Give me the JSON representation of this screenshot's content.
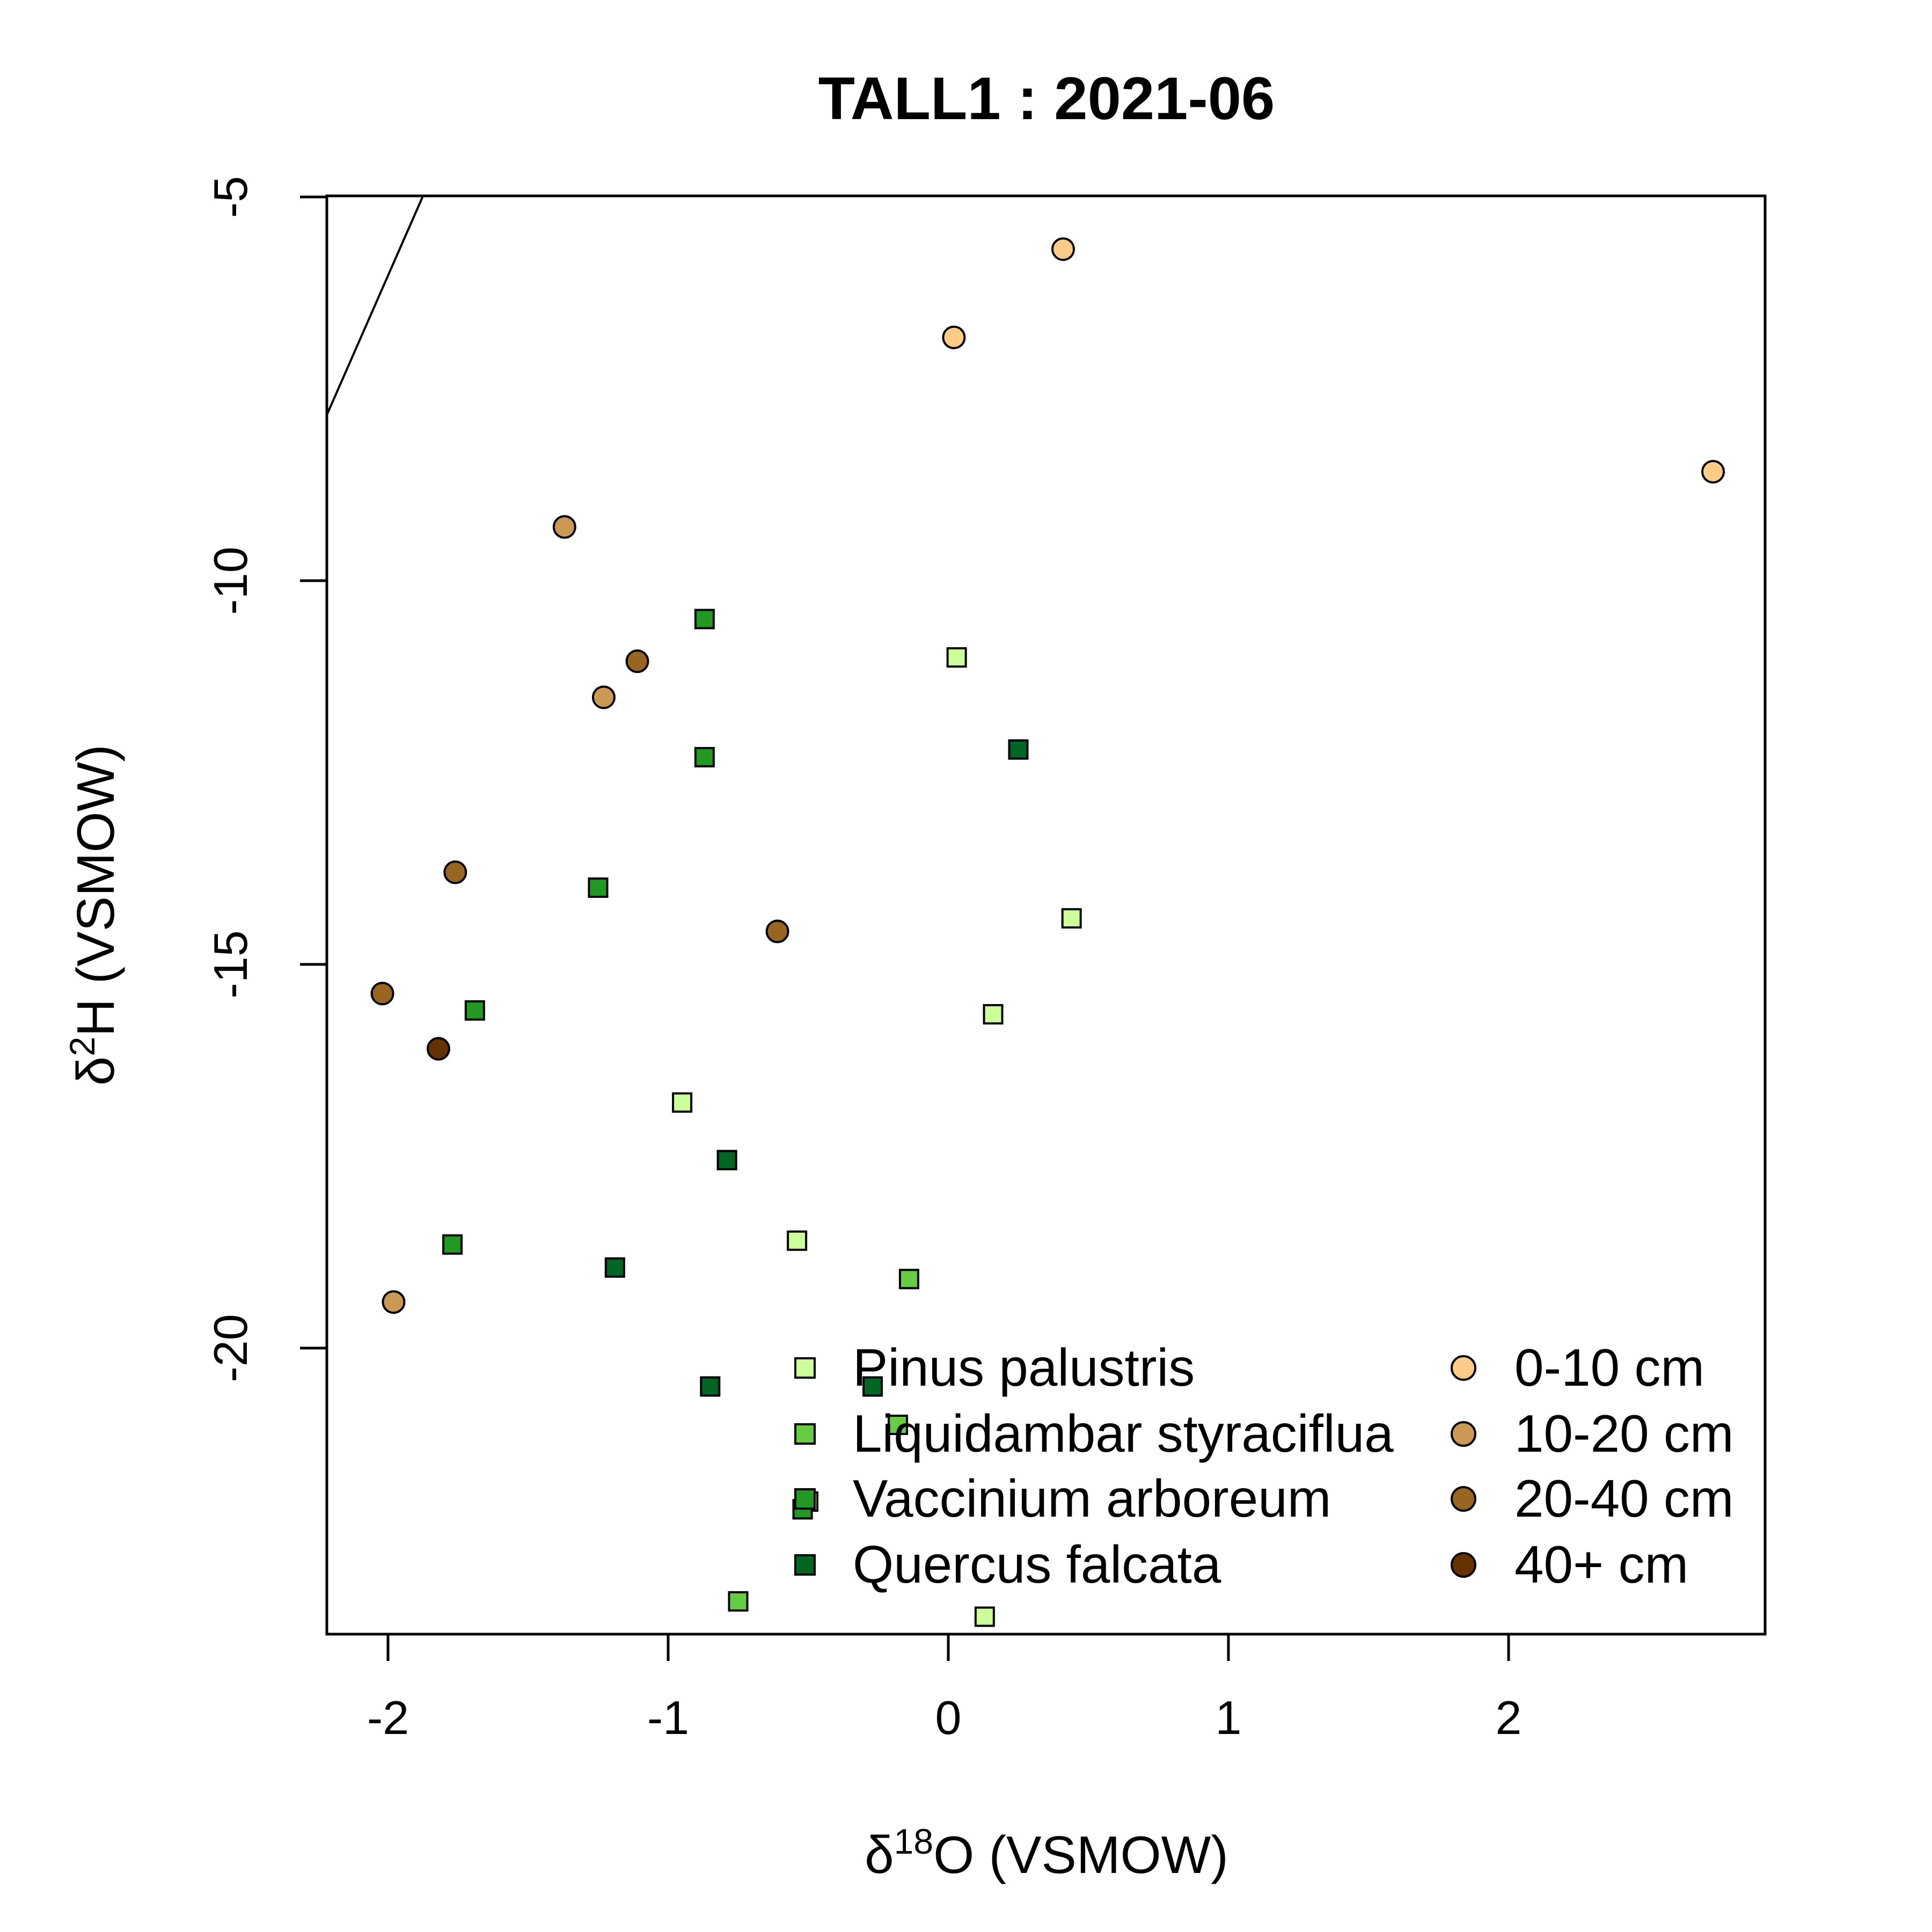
{
  "chart_data": {
    "type": "scatter",
    "title": "TALL1 : 2021-06",
    "xlabel": {
      "delta": "δ",
      "sup": "18",
      "text": "O (VSMOW)"
    },
    "ylabel": {
      "delta": "δ",
      "sup": "2",
      "text": "H (VSMOW)"
    },
    "xlim": [
      -2.23,
      2.9
    ],
    "ylim": [
      -23.7,
      -5
    ],
    "x_ticks": [
      -2,
      -1,
      0,
      1,
      2
    ],
    "x_tick_labels": [
      "-2",
      "-1",
      "0",
      "1",
      "2"
    ],
    "y_ticks": [
      -5,
      -10,
      -15,
      -20
    ],
    "y_tick_labels": [
      "-5",
      "-10",
      "-15",
      "-20"
    ],
    "grid": false,
    "legend_position": "bottom-right",
    "reference_line": {
      "slope": 8,
      "intercept": 10
    },
    "plant_series": [
      {
        "name": "Pinus palustris",
        "color": "#ccff99",
        "marker": "square",
        "points": [
          [
            0.03,
            -11.0
          ],
          [
            0.44,
            -14.4
          ],
          [
            0.16,
            -15.65
          ],
          [
            -0.95,
            -16.8
          ],
          [
            -0.54,
            -18.6
          ],
          [
            -0.5,
            -22.0
          ],
          [
            0.13,
            -23.5
          ]
        ]
      },
      {
        "name": "Liquidambar styraciflua",
        "color": "#66cc44",
        "marker": "square",
        "points": [
          [
            -0.14,
            -19.1
          ],
          [
            -0.18,
            -21.0
          ],
          [
            -0.75,
            -23.3
          ],
          [
            -0.52,
            -22.1
          ]
        ]
      },
      {
        "name": "Vaccinium arboreum",
        "color": "#229922",
        "marker": "square",
        "points": [
          [
            -0.87,
            -10.5
          ],
          [
            -0.87,
            -12.3
          ],
          [
            -1.25,
            -14.0
          ],
          [
            -1.69,
            -15.6
          ],
          [
            -1.77,
            -18.65
          ],
          [
            -0.52,
            -22.1
          ]
        ]
      },
      {
        "name": "Quercus falcata",
        "color": "#006622",
        "marker": "square",
        "points": [
          [
            0.25,
            -12.2
          ],
          [
            -0.79,
            -17.55
          ],
          [
            -1.19,
            -18.95
          ],
          [
            -0.85,
            -20.5
          ],
          [
            -0.27,
            -20.5
          ]
        ]
      }
    ],
    "soil_series": [
      {
        "name": "0-10 cm",
        "color": "#ffcc88",
        "marker": "circle",
        "points": [
          [
            0.41,
            -5.68
          ],
          [
            0.02,
            -6.83
          ],
          [
            2.73,
            -8.58
          ]
        ]
      },
      {
        "name": "10-20 cm",
        "color": "#cc9955",
        "marker": "circle",
        "points": [
          [
            -1.37,
            -9.3
          ],
          [
            -1.23,
            -11.52
          ],
          [
            -1.98,
            -19.4
          ]
        ]
      },
      {
        "name": "20-40 cm",
        "color": "#996622",
        "marker": "circle",
        "points": [
          [
            -1.11,
            -11.05
          ],
          [
            -1.76,
            -13.8
          ],
          [
            -0.61,
            -14.57
          ],
          [
            -2.02,
            -15.38
          ]
        ]
      },
      {
        "name": "40+ cm",
        "color": "#663300",
        "marker": "circle",
        "points": [
          [
            -1.82,
            -16.1
          ]
        ]
      }
    ]
  }
}
